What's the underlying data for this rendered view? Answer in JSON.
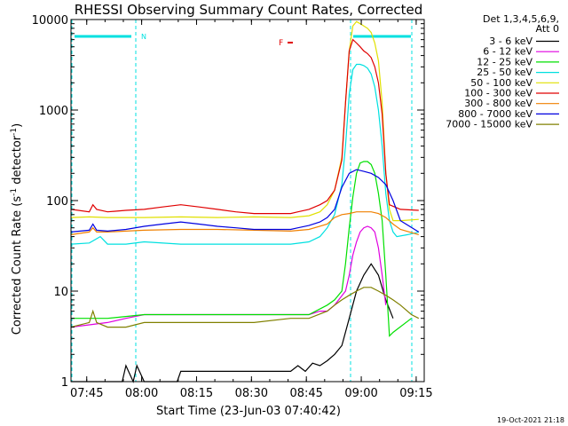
{
  "chart_data": {
    "type": "line",
    "title": "RHESSI Observing Summary Count Rates, Corrected",
    "xlabel": "Start Time (23-Jun-03 07:40:42)",
    "ylabel": "Corrected Count Rate (s",
    "ylabel_exp1": "-1",
    "ylabel_mid": " detector",
    "ylabel_exp2": "-1",
    "ylabel_end": ")",
    "yscale": "log",
    "ylim": [
      1,
      10000
    ],
    "xlim_minutes": [
      0,
      96.5
    ],
    "x_ticks": [
      "07:45",
      "08:00",
      "08:15",
      "08:30",
      "08:45",
      "09:00",
      "09:15"
    ],
    "x_tick_minutes": [
      4.3,
      19.3,
      34.3,
      49.3,
      64.3,
      79.3,
      94.3
    ],
    "y_ticks": [
      "1",
      "10",
      "100",
      "1000",
      "10000"
    ],
    "y_tick_values": [
      1,
      10,
      100,
      1000,
      10000
    ],
    "legend_header": [
      "Det 1,3,4,5,6,9,",
      "Att 0"
    ],
    "timestamp": "19-Oct-2021 21:18",
    "annotations": {
      "night_label": "N",
      "flare_label": "F"
    },
    "series": [
      {
        "name": "3 - 6 keV",
        "color": "#000000",
        "x": [
          0,
          5,
          14,
          15,
          17,
          18,
          20,
          29,
          30,
          60,
          62,
          64,
          66,
          68,
          70,
          72,
          74,
          76,
          78,
          80,
          82,
          84,
          86,
          88
        ],
        "y": [
          1,
          1,
          1,
          1.5,
          1,
          1.5,
          1,
          1,
          1.3,
          1.3,
          1.5,
          1.3,
          1.6,
          1.5,
          1.7,
          2.0,
          2.5,
          5,
          10,
          15,
          20,
          15,
          8,
          5
        ]
      },
      {
        "name": "6 - 12 keV",
        "color": "#e000e0",
        "x": [
          0,
          10,
          15,
          20,
          30,
          40,
          50,
          60,
          65,
          68,
          70,
          72,
          75,
          76,
          77,
          78,
          79,
          80,
          81,
          82,
          83,
          84,
          85,
          86
        ],
        "y": [
          4,
          4.5,
          5,
          5.5,
          5.5,
          5.5,
          5.5,
          5.5,
          5.5,
          6,
          6,
          7,
          10,
          15,
          25,
          35,
          45,
          50,
          52,
          50,
          45,
          30,
          15,
          7
        ]
      },
      {
        "name": "12 - 25 keV",
        "color": "#00e000",
        "x": [
          0,
          10,
          20,
          30,
          40,
          50,
          60,
          65,
          70,
          72,
          74,
          75,
          76,
          77,
          78,
          79,
          80,
          81,
          82,
          83,
          84,
          85,
          86,
          87,
          88,
          93
        ],
        "y": [
          5,
          5,
          5.5,
          5.5,
          5.5,
          5.5,
          5.5,
          5.5,
          7,
          8,
          10,
          20,
          50,
          110,
          200,
          260,
          270,
          270,
          250,
          200,
          120,
          60,
          15,
          3.2,
          3.5,
          5
        ]
      },
      {
        "name": "25 - 50 keV",
        "color": "#00e0e0",
        "x": [
          0,
          5,
          8,
          10,
          15,
          20,
          30,
          40,
          50,
          60,
          65,
          68,
          70,
          72,
          74,
          75,
          76,
          77,
          78,
          79,
          80,
          81,
          82,
          83,
          84,
          85,
          86,
          87,
          88,
          89,
          92,
          95
        ],
        "y": [
          33,
          34,
          40,
          33,
          33,
          35,
          33,
          33,
          33,
          33,
          35,
          40,
          50,
          70,
          150,
          400,
          1500,
          2800,
          3200,
          3200,
          3100,
          2900,
          2500,
          1800,
          1000,
          400,
          120,
          60,
          45,
          40,
          42,
          45
        ]
      },
      {
        "name": "50 - 100 keV",
        "color": "#e0e000",
        "x": [
          0,
          5,
          10,
          20,
          30,
          40,
          50,
          60,
          65,
          68,
          70,
          72,
          74,
          75,
          76,
          77,
          78,
          79,
          80,
          81,
          82,
          83,
          84,
          85,
          86,
          87,
          88,
          90,
          95
        ],
        "y": [
          65,
          66,
          65,
          65,
          66,
          65,
          66,
          65,
          68,
          75,
          90,
          130,
          300,
          1200,
          4500,
          8500,
          9500,
          9000,
          8500,
          8000,
          7200,
          5500,
          3500,
          1200,
          200,
          80,
          60,
          60,
          62
        ]
      },
      {
        "name": "100 - 300 keV",
        "color": "#e00000",
        "x": [
          0,
          5,
          6,
          7,
          10,
          15,
          20,
          25,
          30,
          35,
          40,
          45,
          50,
          55,
          60,
          62,
          65,
          68,
          70,
          72,
          74,
          75,
          76,
          77,
          78,
          79,
          80,
          81,
          82,
          83,
          84,
          85,
          86,
          87,
          90,
          95
        ],
        "y": [
          80,
          75,
          90,
          80,
          75,
          78,
          80,
          85,
          90,
          85,
          80,
          75,
          72,
          72,
          72,
          75,
          80,
          90,
          100,
          130,
          280,
          1200,
          4500,
          6000,
          5500,
          5000,
          4500,
          4200,
          3800,
          3000,
          2000,
          900,
          200,
          90,
          80,
          78
        ]
      },
      {
        "name": "300 - 800 keV",
        "color": "#f08000",
        "x": [
          0,
          5,
          6,
          7,
          10,
          20,
          30,
          40,
          50,
          60,
          65,
          70,
          72,
          74,
          76,
          78,
          80,
          82,
          84,
          86,
          88,
          90,
          95
        ],
        "y": [
          42,
          45,
          50,
          45,
          45,
          47,
          48,
          48,
          47,
          46,
          48,
          55,
          65,
          70,
          72,
          75,
          75,
          75,
          72,
          65,
          55,
          48,
          42
        ]
      },
      {
        "name": "800 - 7000 keV",
        "color": "#0000e0",
        "x": [
          0,
          5,
          6,
          7,
          10,
          15,
          20,
          25,
          30,
          35,
          40,
          45,
          50,
          55,
          60,
          62,
          65,
          68,
          70,
          72,
          74,
          76,
          78,
          80,
          82,
          84,
          86,
          88,
          90,
          95
        ],
        "y": [
          45,
          47,
          55,
          47,
          46,
          48,
          52,
          55,
          58,
          55,
          52,
          50,
          48,
          48,
          48,
          50,
          53,
          58,
          65,
          80,
          140,
          200,
          220,
          210,
          200,
          180,
          150,
          100,
          60,
          45
        ]
      },
      {
        "name": "7000 - 15000 keV",
        "color": "#808000",
        "x": [
          0,
          5,
          6,
          7,
          10,
          15,
          20,
          30,
          40,
          50,
          60,
          65,
          70,
          72,
          74,
          76,
          78,
          80,
          82,
          84,
          86,
          88,
          90,
          93,
          95
        ],
        "y": [
          4,
          4.5,
          6,
          4.5,
          4,
          4,
          4.5,
          4.5,
          4.5,
          4.5,
          5,
          5,
          6,
          7,
          8,
          9,
          10,
          11,
          11,
          10,
          9,
          8,
          7,
          5.5,
          5
        ]
      }
    ]
  }
}
